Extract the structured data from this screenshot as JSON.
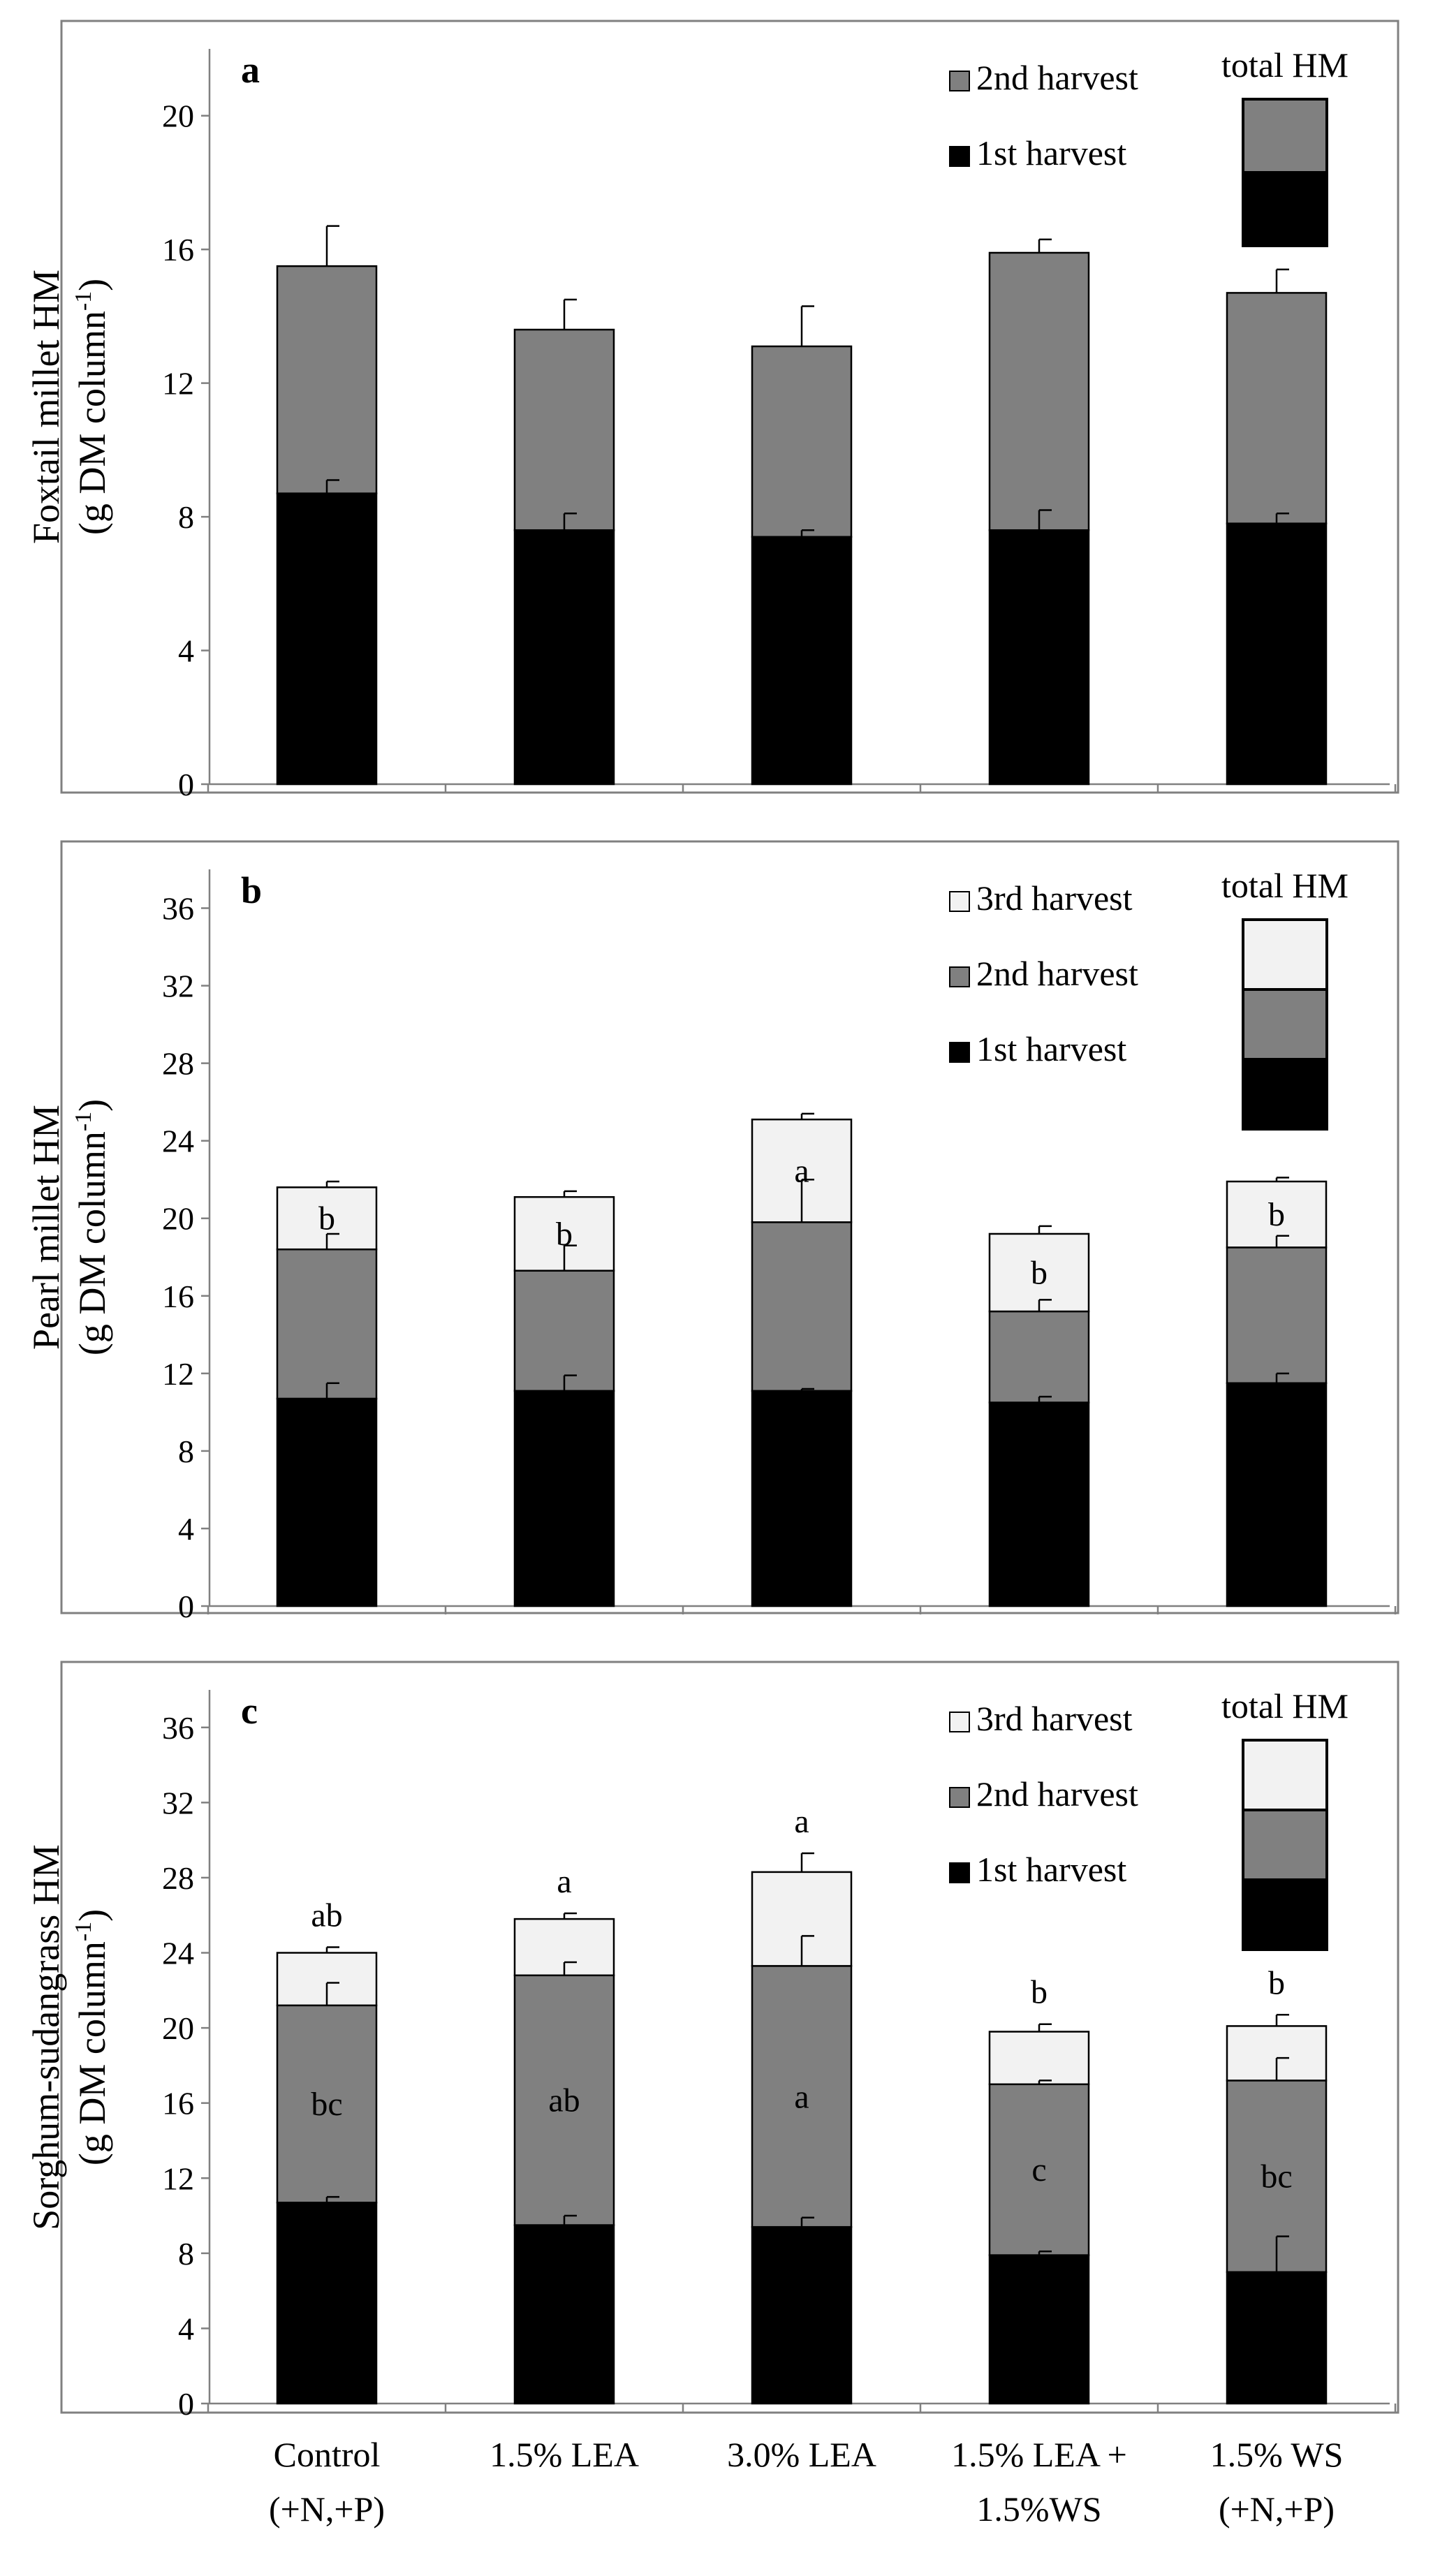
{
  "figure": {
    "categories": [
      [
        "Control",
        "(+N,+P)"
      ],
      [
        "1.5% LEA",
        ""
      ],
      [
        "3.0% LEA",
        ""
      ],
      [
        "1.5% LEA +",
        "1.5%WS"
      ],
      [
        "1.5% WS",
        "(+N,+P)"
      ]
    ],
    "series_colors": {
      "1st harvest": "#000000",
      "2nd harvest": "#808080",
      "3rd harvest": "#f2f2f2"
    },
    "legend_total_label": "total HM"
  },
  "chart_data": [
    {
      "type": "bar",
      "stacked": true,
      "panel_label": "a",
      "ylabel_line1": "Foxtail millet HM",
      "ylabel_line2_pre": "(g DM column",
      "ylabel_line2_sup": "-1",
      "ylabel_line2_post": ")",
      "ylim": [
        0,
        22
      ],
      "yticks": [
        0,
        4,
        8,
        12,
        16,
        20
      ],
      "legend": [
        "2nd harvest",
        "1st harvest"
      ],
      "series": [
        {
          "name": "1st harvest",
          "values": [
            8.7,
            7.6,
            7.4,
            7.6,
            7.8
          ],
          "errors": [
            0.4,
            0.5,
            0.2,
            0.6,
            0.3
          ],
          "labels": []
        },
        {
          "name": "2nd harvest",
          "values": [
            6.8,
            6.0,
            5.7,
            8.3,
            6.9
          ],
          "errors": [
            1.2,
            0.9,
            1.2,
            0.4,
            0.7
          ],
          "labels": []
        }
      ],
      "top_labels": []
    },
    {
      "type": "bar",
      "stacked": true,
      "panel_label": "b",
      "ylabel_line1": "Pearl millet HM",
      "ylabel_line2_pre": "(g DM column",
      "ylabel_line2_sup": "-1",
      "ylabel_line2_post": ")",
      "ylim": [
        0,
        38
      ],
      "yticks": [
        0,
        4,
        8,
        12,
        16,
        20,
        24,
        28,
        32,
        36
      ],
      "legend": [
        "3rd harvest",
        "2nd harvest",
        "1st harvest"
      ],
      "series": [
        {
          "name": "1st harvest",
          "values": [
            10.7,
            11.1,
            11.1,
            10.5,
            11.5
          ],
          "errors": [
            0.8,
            0.8,
            0.1,
            0.3,
            0.5
          ],
          "labels": []
        },
        {
          "name": "2nd harvest",
          "values": [
            7.7,
            6.2,
            8.7,
            4.7,
            7.0
          ],
          "errors": [
            0.8,
            1.3,
            2.2,
            0.6,
            0.6
          ],
          "labels": []
        },
        {
          "name": "3rd harvest",
          "values": [
            3.2,
            3.8,
            5.3,
            4.0,
            3.4
          ],
          "errors": [
            0.3,
            0.3,
            0.3,
            0.4,
            0.2
          ],
          "labels": [
            "b",
            "b",
            "a",
            "b",
            "b"
          ]
        }
      ],
      "top_labels": []
    },
    {
      "type": "bar",
      "stacked": true,
      "panel_label": "c",
      "ylabel_line1": "Sorghum-sudangrass HM",
      "ylabel_line2_pre": "(g DM column",
      "ylabel_line2_sup": "-1",
      "ylabel_line2_post": ")",
      "ylim": [
        0,
        38
      ],
      "yticks": [
        0,
        4,
        8,
        12,
        16,
        20,
        24,
        28,
        32,
        36
      ],
      "legend": [
        "3rd harvest",
        "2nd harvest",
        "1st harvest"
      ],
      "series": [
        {
          "name": "1st harvest",
          "values": [
            10.7,
            9.5,
            9.4,
            7.9,
            7.0
          ],
          "errors": [
            0.3,
            0.5,
            0.5,
            0.2,
            1.9
          ],
          "labels": []
        },
        {
          "name": "2nd harvest",
          "values": [
            10.5,
            13.3,
            13.9,
            9.1,
            10.2
          ],
          "errors": [
            1.2,
            0.7,
            1.6,
            0.2,
            1.2
          ],
          "labels": [
            "bc",
            "ab",
            "a",
            "c",
            "bc"
          ]
        },
        {
          "name": "3rd harvest",
          "values": [
            2.8,
            3.0,
            5.0,
            2.8,
            2.9
          ],
          "errors": [
            0.3,
            0.3,
            1.0,
            0.4,
            0.6
          ],
          "labels": []
        }
      ],
      "top_labels": [
        "ab",
        "a",
        "a",
        "b",
        "b"
      ]
    }
  ]
}
